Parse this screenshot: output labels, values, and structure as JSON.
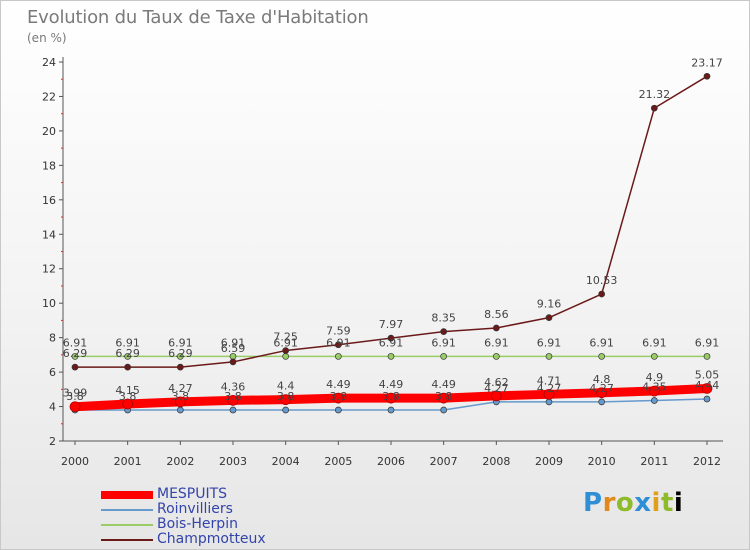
{
  "title": "Evolution du Taux de Taxe d'Habitation",
  "unit": "(en %)",
  "logo": [
    "P",
    "r",
    "o",
    "x",
    "i",
    "t",
    "i"
  ],
  "colors": {
    "mespuits": "#ff0000",
    "roinvilliers": "#6699cc",
    "bois_herpin": "#99cc66",
    "champmotteux": "#6b1a1a"
  },
  "chart_data": {
    "type": "line",
    "title": "Evolution du Taux de Taxe d'Habitation",
    "ylabel": "(en %)",
    "xlabel": "",
    "x": [
      "2000",
      "2001",
      "2002",
      "2003",
      "2004",
      "2005",
      "2006",
      "2007",
      "2008",
      "2009",
      "2010",
      "2011",
      "2012"
    ],
    "ylim": [
      2,
      24
    ],
    "yticks": [
      2,
      4,
      6,
      8,
      10,
      12,
      14,
      16,
      18,
      20,
      22,
      24
    ],
    "grid": false,
    "legend_position": "bottom-left",
    "series": [
      {
        "name": "MESPUITS",
        "color": "#ff0000",
        "values": [
          3.99,
          4.15,
          4.27,
          4.36,
          4.4,
          4.49,
          4.49,
          4.49,
          4.62,
          4.71,
          4.8,
          4.9,
          5.05
        ],
        "labels": [
          "3.99",
          "4.15",
          "4.27",
          "4.36",
          "4.4",
          "4.49",
          "4.49",
          "4.49",
          "4.62",
          "4.71",
          "4.8",
          "4.9",
          "5.05"
        ]
      },
      {
        "name": "Roinvilliers",
        "color": "#6699cc",
        "values": [
          3.8,
          3.8,
          3.8,
          3.8,
          3.8,
          3.8,
          3.8,
          3.8,
          4.27,
          4.27,
          4.27,
          4.35,
          4.44
        ],
        "labels": [
          "3.8",
          "3.8",
          "3.8",
          "3.8",
          "3.8",
          "3.8",
          "3.8",
          "3.8",
          "4.27",
          "4.27",
          "4.27",
          "4.35",
          "4.44"
        ]
      },
      {
        "name": "Bois-Herpin",
        "color": "#99cc66",
        "values": [
          6.91,
          6.91,
          6.91,
          6.91,
          6.91,
          6.91,
          6.91,
          6.91,
          6.91,
          6.91,
          6.91,
          6.91,
          6.91
        ],
        "labels": [
          "6.91",
          "6.91",
          "6.91",
          "6.91",
          "6.91",
          "6.91",
          "6.91",
          "6.91",
          "6.91",
          "6.91",
          "6.91",
          "6.91",
          "6.91"
        ]
      },
      {
        "name": "Champmotteux",
        "color": "#6b1a1a",
        "values": [
          6.29,
          6.29,
          6.29,
          6.59,
          7.25,
          7.59,
          7.97,
          8.35,
          8.56,
          9.16,
          10.53,
          21.32,
          23.17
        ],
        "labels": [
          "6.29",
          "6.29",
          "6.29",
          "6.59",
          "7.25",
          "7.59",
          "7.97",
          "8.35",
          "8.56",
          "9.16",
          "10.53",
          "21.32",
          "23.17"
        ]
      }
    ]
  }
}
